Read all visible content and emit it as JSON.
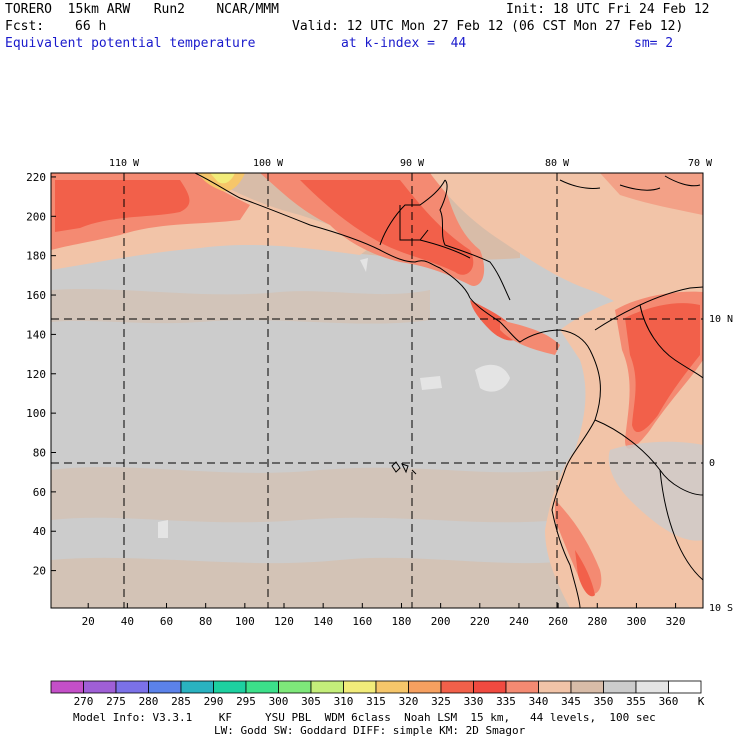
{
  "header": {
    "model": "TORERO  15km ARW   Run2    NCAR/MMM",
    "init": "Init: 18 UTC Fri 24 Feb 12",
    "fcst_label": "Fcst:",
    "fcst_value": "66 h",
    "valid": "Valid: 12 UTC Mon 27 Feb 12 (06 CST Mon 27 Feb 12)",
    "field": "Equivalent potential temperature",
    "level": "at k-index =  44",
    "smoothing": "sm= 2"
  },
  "map": {
    "top_lon_labels": [
      "110 W",
      "100 W",
      "90 W",
      "80 W",
      "70 W"
    ],
    "right_lat_labels": [
      "10 N",
      "0",
      "10 S"
    ],
    "left_ticks": [
      "220",
      "200",
      "180",
      "160",
      "140",
      "120",
      "100",
      "80",
      "60",
      "40",
      "20"
    ],
    "bottom_ticks": [
      "20",
      "40",
      "60",
      "80",
      "100",
      "120",
      "140",
      "160",
      "180",
      "200",
      "220",
      "240",
      "260",
      "280",
      "300",
      "320"
    ],
    "grid_x_range": [
      1,
      334
    ],
    "grid_y_range": [
      1,
      222
    ]
  },
  "legend": {
    "levels": [
      "270",
      "275",
      "280",
      "285",
      "290",
      "295",
      "300",
      "305",
      "310",
      "315",
      "320",
      "325",
      "330",
      "335",
      "340",
      "345",
      "350",
      "355",
      "360"
    ],
    "unit": "K",
    "colors": [
      "#c44fc8",
      "#9f5fd6",
      "#7b71e8",
      "#5b82ea",
      "#2ab2c0",
      "#1dd0a0",
      "#3ce08a",
      "#7ee87a",
      "#c4ee7a",
      "#f2ec7a",
      "#f6c66a",
      "#f6a060",
      "#f2604a",
      "#f04a40",
      "#f48a72",
      "#f2c4a8",
      "#d8bca8",
      "#cccccc",
      "#e4e4e4",
      "#ffffff"
    ]
  },
  "footer": {
    "line1": "Model Info: V3.3.1    KF     YSU PBL  WDM 6class  Noah LSM  15 km,   44 levels,  100 sec",
    "line2": "LW: Godd SW: Goddard DIFF: simple KM: 2D Smagor"
  }
}
